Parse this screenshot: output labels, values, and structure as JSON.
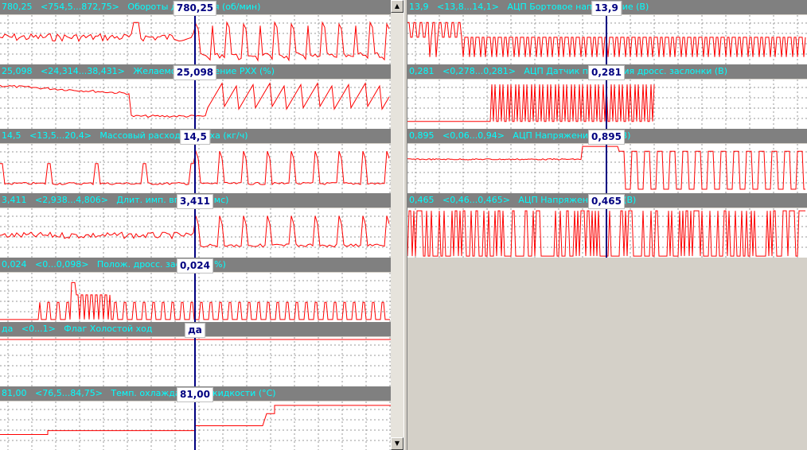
{
  "cursor_label_color": "#000080",
  "channels": [
    {
      "id": "rpm",
      "current": "780,25",
      "range": "<754,5...872,75>",
      "label": "Обороты двигателя (об/мин)",
      "value_box": "780,25"
    },
    {
      "id": "rxx",
      "current": "25,098",
      "range": "<24,314...38,431>",
      "label": "Желаемое положение РХХ (%)",
      "value_box": "25,098"
    },
    {
      "id": "maf",
      "current": "14,5",
      "range": "<13,5...20,4>",
      "label": "Массовый расход воздуха (кг/ч)",
      "value_box": "14,5"
    },
    {
      "id": "inj",
      "current": "3,411",
      "range": "<2,938...4,806>",
      "label": "Длит. имп. впрыска (мс)",
      "value_box": "3,411"
    },
    {
      "id": "tps",
      "current": "0,024",
      "range": "<0...0,098>",
      "label": "Полож. дросс. заслонки (%)",
      "value_box": "0,024"
    },
    {
      "id": "idle",
      "current": "да",
      "range": "<0...1>",
      "label": "Флаг Холостой ход",
      "value_box": "да"
    },
    {
      "id": "temp",
      "current": "81,00",
      "range": "<76,5...84,75>",
      "label": "Темп. охлаждающей жидкости (°C)",
      "value_box": "81,00"
    },
    {
      "id": "vbat",
      "current": "13,9",
      "range": "<13,8...14,1>",
      "label": "АЦП Бортовое напряжение (В)",
      "value_box": "13,9"
    },
    {
      "id": "tpsv",
      "current": "0,281",
      "range": "<0,278...0,281>",
      "label": "АЦП Датчик положения дросс. заслонки (В)",
      "value_box": "0,281"
    },
    {
      "id": "o2a",
      "current": "0,895",
      "range": "<0,06...0,94>",
      "label": "АЦП Напряжение ДК1 (В)",
      "value_box": "0,895"
    },
    {
      "id": "o2b",
      "current": "0,465",
      "range": "<0,46...0,465>",
      "label": "АЦП Напряжение ДК2 (В)",
      "value_box": "0,465"
    }
  ],
  "scroll": {
    "up_icon": "▲",
    "down_icon": "▼"
  }
}
